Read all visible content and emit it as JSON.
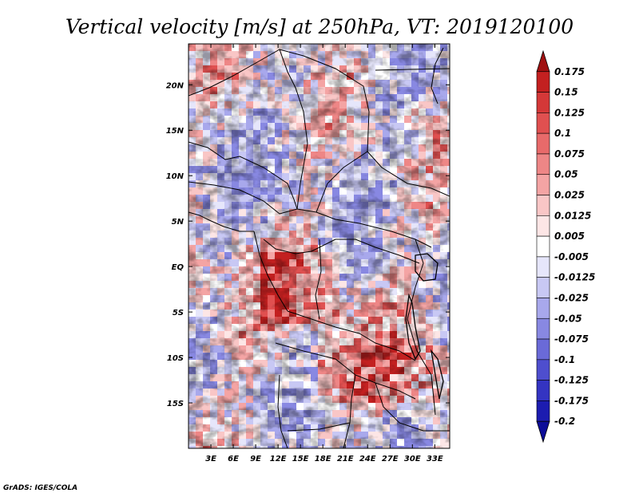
{
  "chart_data": {
    "type": "heatmap",
    "title": "Vertical velocity [m/s] at 250hPa, VT: 2019120100",
    "variable": "Vertical velocity",
    "units": "m/s",
    "level": "250hPa",
    "valid_time": "2019120100",
    "xlabel": "",
    "ylabel": "",
    "x_range": [
      0,
      35
    ],
    "y_range": [
      -20,
      24.5
    ],
    "x_ticks": [
      3,
      6,
      9,
      12,
      15,
      18,
      21,
      24,
      27,
      30,
      33
    ],
    "x_tick_labels": [
      "3E",
      "6E",
      "9E",
      "12E",
      "15E",
      "18E",
      "21E",
      "24E",
      "27E",
      "30E",
      "33E"
    ],
    "y_ticks": [
      20,
      15,
      10,
      5,
      0,
      -5,
      -10,
      -15
    ],
    "y_tick_labels": [
      "20N",
      "15N",
      "10N",
      "5N",
      "EQ",
      "5S",
      "10S",
      "15S"
    ],
    "colorbar": {
      "levels": [
        "0.175",
        "0.15",
        "0.125",
        "0.1",
        "0.075",
        "0.05",
        "0.025",
        "0.0125",
        "0.005",
        "-0.005",
        "-0.0125",
        "-0.025",
        "-0.05",
        "-0.075",
        "-0.1",
        "-0.125",
        "-0.175",
        "-0.2"
      ],
      "colors": [
        "#a01010",
        "#c32020",
        "#d43838",
        "#e05050",
        "#e86a6a",
        "#ee8686",
        "#f4a4a4",
        "#f9c6c6",
        "#fde6e6",
        "#ffffff",
        "#e6e6fb",
        "#c8c8f4",
        "#a8a8ec",
        "#8888e2",
        "#6a6ad8",
        "#4e4ece",
        "#3434c2",
        "#1c1cb0",
        "#0c0c98"
      ]
    },
    "grid": false,
    "legend": "colorbar-right"
  },
  "credit": "GrADS: IGES/COLA"
}
